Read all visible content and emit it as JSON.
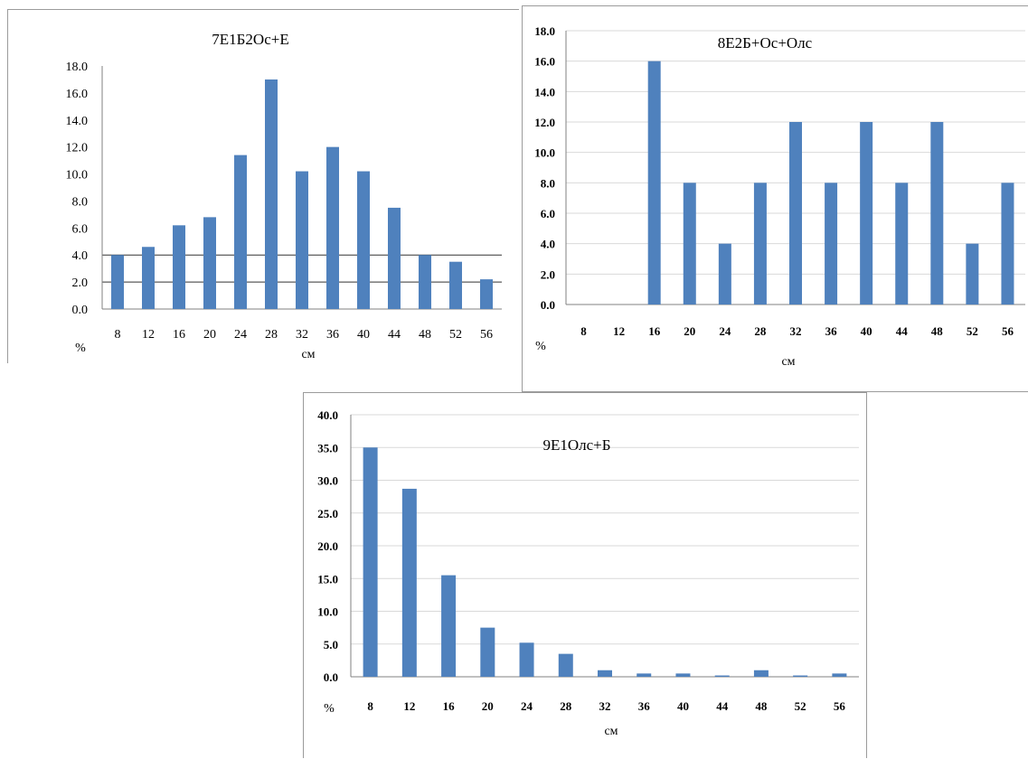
{
  "chart_data": [
    {
      "type": "bar",
      "title": "7Е1Б2Ос+Е",
      "categories": [
        "8",
        "12",
        "16",
        "20",
        "24",
        "28",
        "32",
        "36",
        "40",
        "44",
        "48",
        "52",
        "56"
      ],
      "values": [
        4.0,
        4.6,
        6.2,
        6.8,
        11.4,
        17.0,
        10.2,
        12.0,
        10.2,
        7.5,
        4.0,
        3.5,
        2.2
      ],
      "yticks": [
        "0.0",
        "2.0",
        "4.0",
        "6.0",
        "8.0",
        "10.0",
        "12.0",
        "14.0",
        "16.0",
        "18.0"
      ],
      "ylim": [
        0,
        18
      ],
      "xlabel": "см",
      "ylabel": "%",
      "grid": "partial-horizontal",
      "bar_color": "#4f81bd"
    },
    {
      "type": "bar",
      "title": "8Е2Б+Ос+Олс",
      "categories": [
        "8",
        "12",
        "16",
        "20",
        "24",
        "28",
        "32",
        "36",
        "40",
        "44",
        "48",
        "52",
        "56"
      ],
      "values": [
        0,
        0,
        16.0,
        8.0,
        4.0,
        8.0,
        12.0,
        8.0,
        12.0,
        8.0,
        12.0,
        4.0,
        8.0
      ],
      "yticks": [
        "0.0",
        "2.0",
        "4.0",
        "6.0",
        "8.0",
        "10.0",
        "12.0",
        "14.0",
        "16.0",
        "18.0"
      ],
      "ylim": [
        0,
        18
      ],
      "xlabel": "см",
      "ylabel": "%",
      "grid": "horizontal",
      "bar_color": "#4f81bd"
    },
    {
      "type": "bar",
      "title": "9Е1Олс+Б",
      "categories": [
        "8",
        "12",
        "16",
        "20",
        "24",
        "28",
        "32",
        "36",
        "40",
        "44",
        "48",
        "52",
        "56"
      ],
      "values": [
        35.0,
        28.7,
        15.5,
        7.5,
        5.2,
        3.5,
        1.0,
        0.5,
        0.5,
        0.2,
        1.0,
        0.2,
        0.5
      ],
      "yticks": [
        "0.0",
        "5.0",
        "10.0",
        "15.0",
        "20.0",
        "25.0",
        "30.0",
        "35.0",
        "40.0"
      ],
      "ylim": [
        0,
        40
      ],
      "xlabel": "см",
      "ylabel": "%",
      "grid": "horizontal",
      "bar_color": "#4f81bd"
    }
  ]
}
